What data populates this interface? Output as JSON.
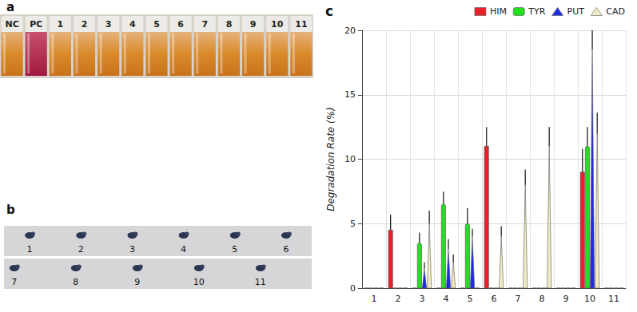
{
  "photos": [
    {
      "panel": "a",
      "labels": [
        "NC",
        "PC",
        "1",
        "2",
        "3",
        "4",
        "5",
        "6",
        "7",
        "8",
        "9",
        "10",
        "11"
      ]
    },
    {
      "panel": "b",
      "rows": [
        [
          "1",
          "2",
          "3",
          "4",
          "5",
          "6"
        ],
        [
          "7",
          "8",
          "9",
          "10",
          "11"
        ]
      ]
    }
  ],
  "chart_data": {
    "type": "bar",
    "title": "c",
    "categories": [
      "1",
      "2",
      "3",
      "4",
      "5",
      "6",
      "7",
      "8",
      "9",
      "10",
      "11"
    ],
    "ylabel": "Degradation Rate (%)",
    "ylim": [
      0,
      20
    ],
    "yticks": [
      0,
      5,
      10,
      15,
      20
    ],
    "grid": true,
    "legend": "top",
    "series": [
      {
        "name": "HIM",
        "color": "#e8202a",
        "marker": "square",
        "values": [
          0,
          4.5,
          0,
          0,
          0,
          11,
          0,
          0,
          0,
          9,
          0
        ],
        "errors": [
          null,
          1.2,
          null,
          null,
          null,
          1.5,
          null,
          null,
          null,
          1.8,
          null
        ]
      },
      {
        "name": "TYR",
        "color": "#22e01e",
        "marker": "cylinder",
        "values": [
          0,
          0,
          3.5,
          6.5,
          5,
          0,
          0,
          0,
          0,
          11,
          0
        ],
        "errors": [
          null,
          null,
          0.8,
          1.0,
          1.2,
          null,
          null,
          null,
          null,
          1.5,
          null
        ]
      },
      {
        "name": "PUT",
        "color": "#1f2de0",
        "marker": "cone",
        "values": [
          0,
          0,
          1.5,
          3,
          4,
          0,
          0,
          0,
          0,
          18.5,
          0
        ],
        "errors": [
          null,
          null,
          0.5,
          0.8,
          0.6,
          null,
          null,
          null,
          null,
          1.5,
          null
        ]
      },
      {
        "name": "CAD",
        "color": "#f2ecc4",
        "marker": "cone",
        "values": [
          0,
          0,
          5,
          2,
          0,
          4,
          8,
          11,
          0,
          12,
          0
        ],
        "errors": [
          null,
          null,
          1.0,
          0.6,
          null,
          0.8,
          1.2,
          1.5,
          null,
          1.6,
          null
        ]
      }
    ]
  }
}
